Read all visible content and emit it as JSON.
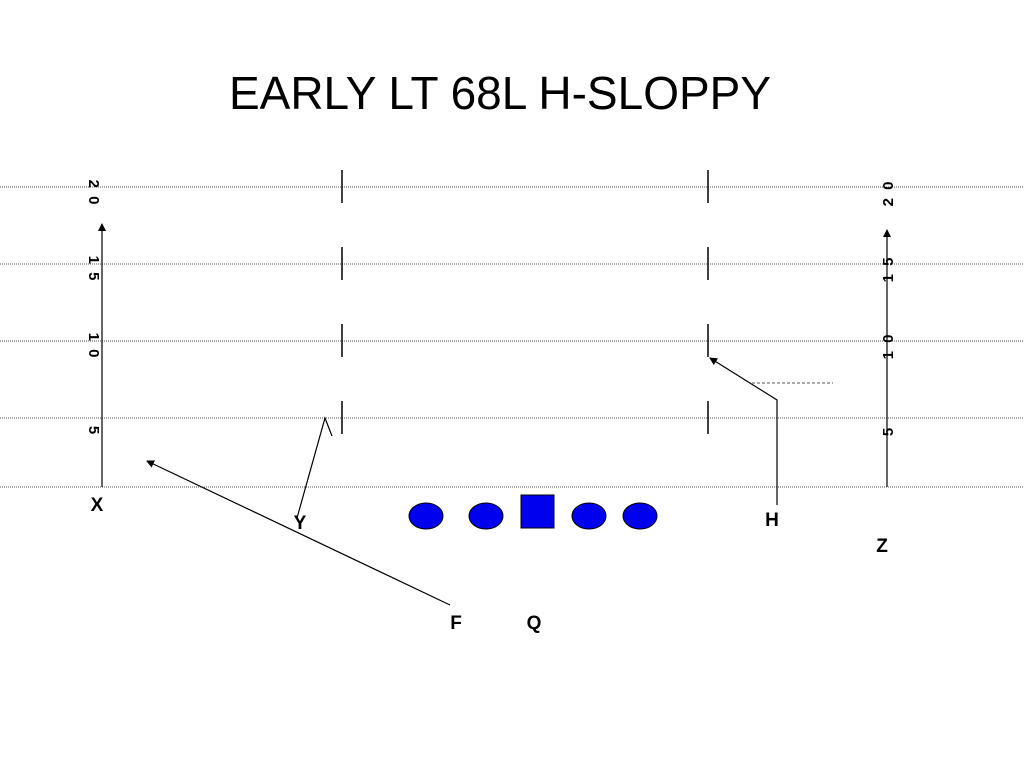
{
  "title": "EARLY LT 68L H-SLOPPY",
  "yard_markers": [
    "2 0",
    "1 5",
    "1 0",
    "5"
  ],
  "players": [
    "X",
    "Y",
    "H",
    "Z",
    "F",
    "Q"
  ]
}
